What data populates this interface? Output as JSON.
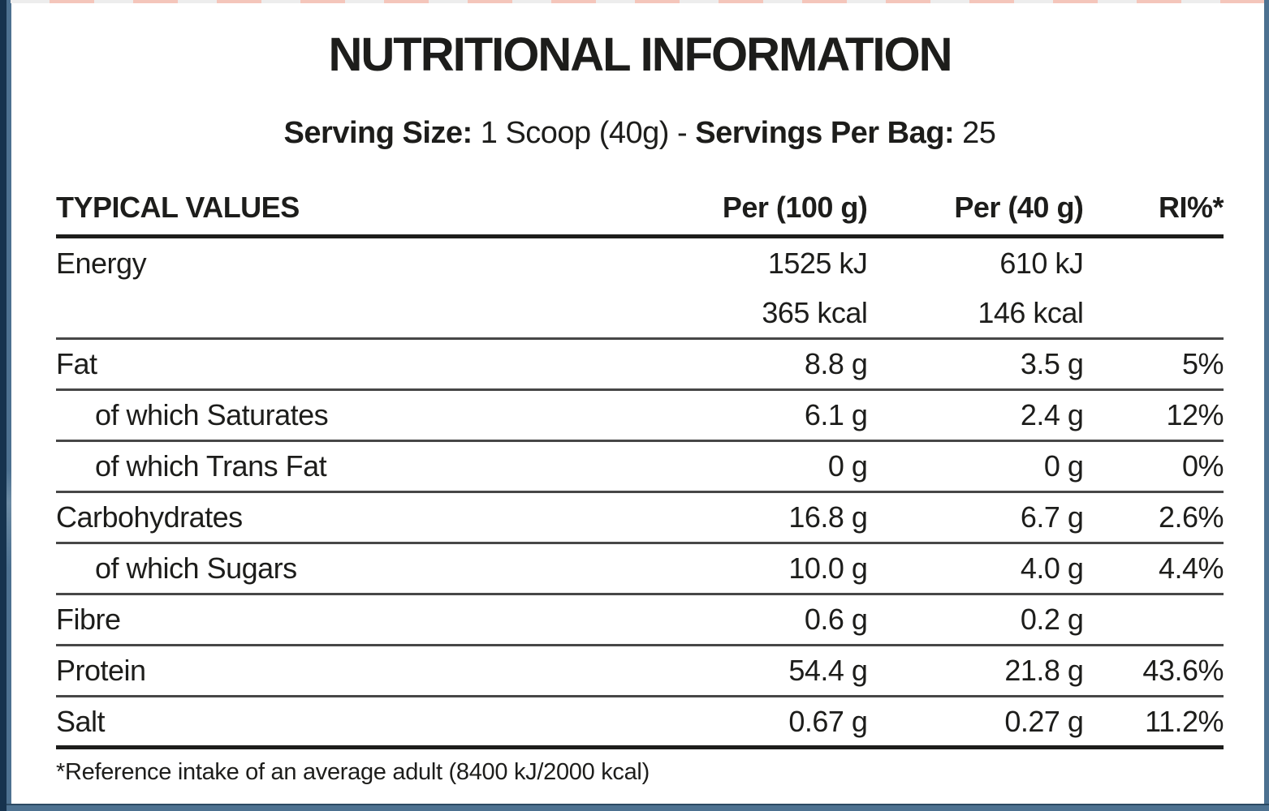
{
  "title": "NUTRITIONAL INFORMATION",
  "serving": {
    "size_label": "Serving Size:",
    "size_value": "1 Scoop (40g)",
    "separator": "-",
    "bag_label": "Servings Per Bag:",
    "bag_value": "25"
  },
  "table": {
    "headers": {
      "label": "TYPICAL VALUES",
      "per100": "Per (100 g)",
      "per40": "Per (40 g)",
      "ri": "RI%*"
    },
    "rows": [
      {
        "label": "Energy",
        "per100": "1525 kJ",
        "per40": "610 kJ",
        "ri": ""
      },
      {
        "label": "",
        "per100": "365 kcal",
        "per40": "146 kcal",
        "ri": ""
      },
      {
        "label": "Fat",
        "per100": "8.8 g",
        "per40": "3.5 g",
        "ri": "5%"
      },
      {
        "label": "of which Saturates",
        "per100": "6.1 g",
        "per40": "2.4 g",
        "ri": "12%"
      },
      {
        "label": "of which Trans Fat",
        "per100": "0 g",
        "per40": "0 g",
        "ri": "0%"
      },
      {
        "label": "Carbohydrates",
        "per100": "16.8 g",
        "per40": "6.7 g",
        "ri": "2.6%"
      },
      {
        "label": "of which Sugars",
        "per100": "10.0 g",
        "per40": "4.0 g",
        "ri": "4.4%"
      },
      {
        "label": "Fibre",
        "per100": "0.6 g",
        "per40": "0.2 g",
        "ri": ""
      },
      {
        "label": "Protein",
        "per100": "54.4 g",
        "per40": "21.8 g",
        "ri": "43.6%"
      },
      {
        "label": "Salt",
        "per100": "0.67 g",
        "per40": "0.27 g",
        "ri": "11.2%"
      }
    ],
    "footnote": "*Reference intake of an average adult (8400 kJ/2000 kcal)"
  },
  "colors": {
    "text": "#1d1d1b",
    "frame-navy": "#16334e",
    "frame-slate": "#4d7190",
    "accent-pink": "#f4c6bb",
    "accent-gray": "#ededed",
    "line-thin": "#474747",
    "line-thick": "#1d1d1b"
  }
}
